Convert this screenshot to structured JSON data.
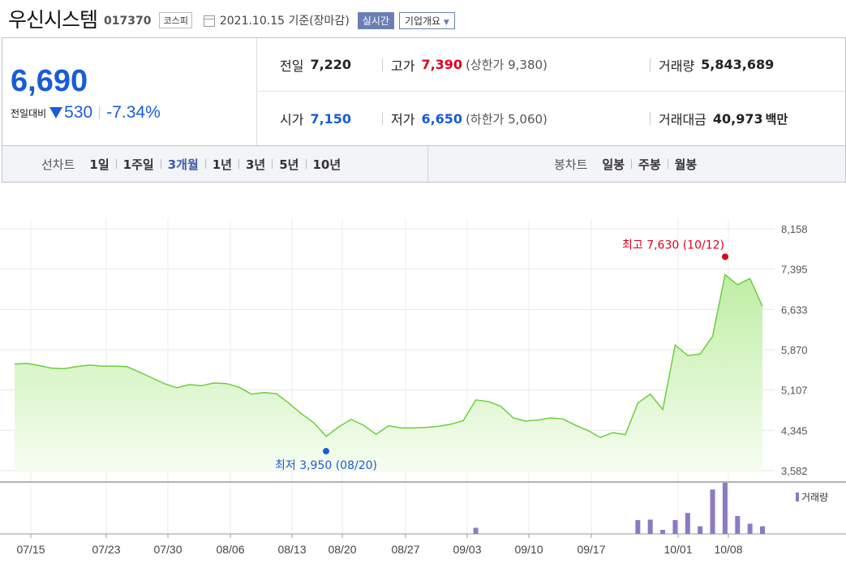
{
  "header": {
    "name": "우신시스템",
    "code": "017370",
    "market": "코스피",
    "date": "2021.10.15 기준(장마감)",
    "realtime_label": "실시간",
    "company_label": "기업개요"
  },
  "price": {
    "current": "6,690",
    "change_label": "전일대비",
    "change_amount": "530",
    "change_percent": "-7.34%"
  },
  "stats": {
    "prev_label": "전일",
    "prev_value": "7,220",
    "high_label": "고가",
    "high_value": "7,390",
    "upper_limit": "(상한가 9,380)",
    "volume_label": "거래량",
    "volume_value": "5,843,689",
    "open_label": "시가",
    "open_value": "7,150",
    "low_label": "저가",
    "low_value": "6,650",
    "lower_limit": "(하한가 5,060)",
    "amount_label": "거래대금",
    "amount_value": "40,973",
    "amount_unit": "백만"
  },
  "tabs": {
    "line_title": "선차트",
    "line_items": [
      "1일",
      "1주일",
      "3개월",
      "1년",
      "3년",
      "5년",
      "10년"
    ],
    "active": "3개월",
    "candle_title": "봉차트",
    "candle_items": [
      "일봉",
      "주봉",
      "월봉"
    ]
  },
  "colors": {
    "price_down": "#1a5cd8",
    "price_up": "#e0001c",
    "line": "#6ccf3c",
    "volume": "#8c7ac4",
    "active_tab": "#3b5aa8"
  },
  "chart_data": {
    "type": "area",
    "y_ticks": [
      "8,158",
      "7,395",
      "6,633",
      "5,870",
      "5,107",
      "4,345",
      "3,582"
    ],
    "ylim": [
      3582,
      8158
    ],
    "x_tick_labels": [
      "07/15",
      "07/23",
      "07/30",
      "08/06",
      "08/13",
      "08/20",
      "08/27",
      "09/03",
      "09/10",
      "09/17",
      "10/01",
      "10/08"
    ],
    "values": [
      5600,
      5610,
      5570,
      5520,
      5510,
      5550,
      5580,
      5560,
      5560,
      5550,
      5450,
      5340,
      5230,
      5150,
      5210,
      5190,
      5240,
      5230,
      5160,
      5030,
      5060,
      5040,
      4860,
      4660,
      4490,
      4230,
      4410,
      4550,
      4440,
      4270,
      4430,
      4390,
      4390,
      4400,
      4420,
      4460,
      4530,
      4920,
      4890,
      4800,
      4580,
      4520,
      4540,
      4580,
      4560,
      4440,
      4340,
      4210,
      4300,
      4260,
      4860,
      5030,
      4740,
      5960,
      5760,
      5790,
      6120,
      7290,
      7100,
      7220,
      6690
    ],
    "high_label": "최고 7,630 (10/12)",
    "high_value": 7630,
    "low_label": "최저 3,950 (08/20)",
    "low_value": 3950,
    "volume_label": "거래량",
    "volume": [
      0,
      0,
      0,
      0,
      0,
      0,
      0,
      0,
      0,
      0,
      0,
      0,
      0,
      0,
      0,
      0,
      0,
      0,
      0,
      0,
      0,
      0,
      0,
      0,
      0,
      0,
      0,
      0,
      0,
      0,
      0,
      0,
      0,
      0,
      0,
      0,
      0,
      0.12,
      0,
      0,
      0,
      0,
      0,
      0,
      0,
      0,
      0,
      0,
      0,
      0,
      0.27,
      0.28,
      0.08,
      0.27,
      0.41,
      0.15,
      0.87,
      1.0,
      0.35,
      0.2,
      0.15
    ]
  }
}
